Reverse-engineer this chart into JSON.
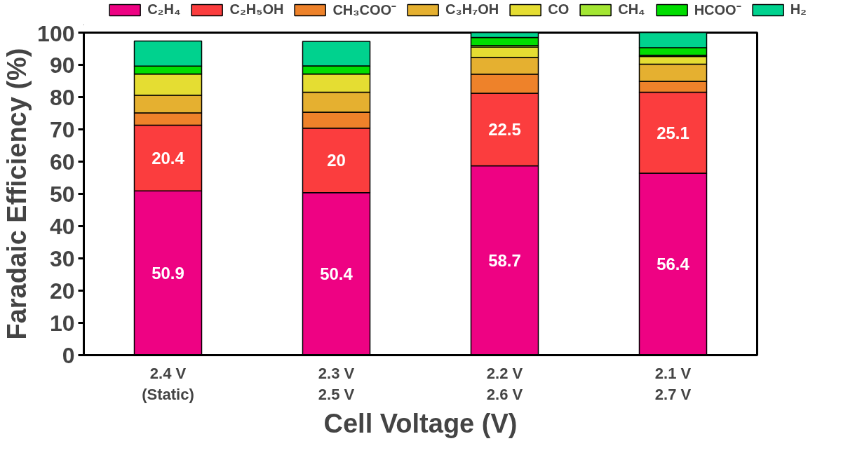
{
  "chart_data": {
    "type": "bar",
    "stacked": true,
    "xlabel": "Cell Voltage (V)",
    "ylabel": "Faradaic Efficiency (%)",
    "categories": [
      "2.4 V\n(Static)",
      "2.3 V\n2.5 V",
      "2.2 V\n2.6 V",
      "2.1 V\n2.7 V"
    ],
    "ylim": [
      0,
      100
    ],
    "yticks": [
      0,
      10,
      20,
      30,
      40,
      50,
      60,
      70,
      80,
      90,
      100
    ],
    "grid": false,
    "legend": "top",
    "series": [
      {
        "name": "C₂H₄",
        "color": "#ee0283",
        "values": [
          50.9,
          50.4,
          58.7,
          56.4
        ],
        "value_labels": [
          "50.9",
          "50.4",
          "58.7",
          "56.4"
        ]
      },
      {
        "name": "C₂H₅OH",
        "color": "#fb3d3e",
        "values": [
          20.4,
          20,
          22.5,
          25.1
        ],
        "value_labels": [
          "20.4",
          "20",
          "22.5",
          "25.1"
        ]
      },
      {
        "name": "CH₃COO⁻",
        "color": "#ee822a",
        "values": [
          3.8,
          4.9,
          5.9,
          3.4
        ]
      },
      {
        "name": "C₃H₇OH",
        "color": "#e5b030",
        "values": [
          5.5,
          6.2,
          5.2,
          5.3
        ]
      },
      {
        "name": "CO",
        "color": "#e5dd32",
        "values": [
          6.6,
          5.7,
          3.2,
          2.4
        ]
      },
      {
        "name": "CH₄",
        "color": "#a3e632",
        "values": [
          null,
          null,
          0.5,
          0.4
        ]
      },
      {
        "name": "HCOO⁻",
        "color": "#00dd00",
        "values": [
          2.4,
          2.5,
          2.5,
          2.3
        ]
      },
      {
        "name": "H₂",
        "color": "#00d28e",
        "values": [
          7.8,
          7.6,
          1.5,
          4.7
        ]
      }
    ]
  }
}
